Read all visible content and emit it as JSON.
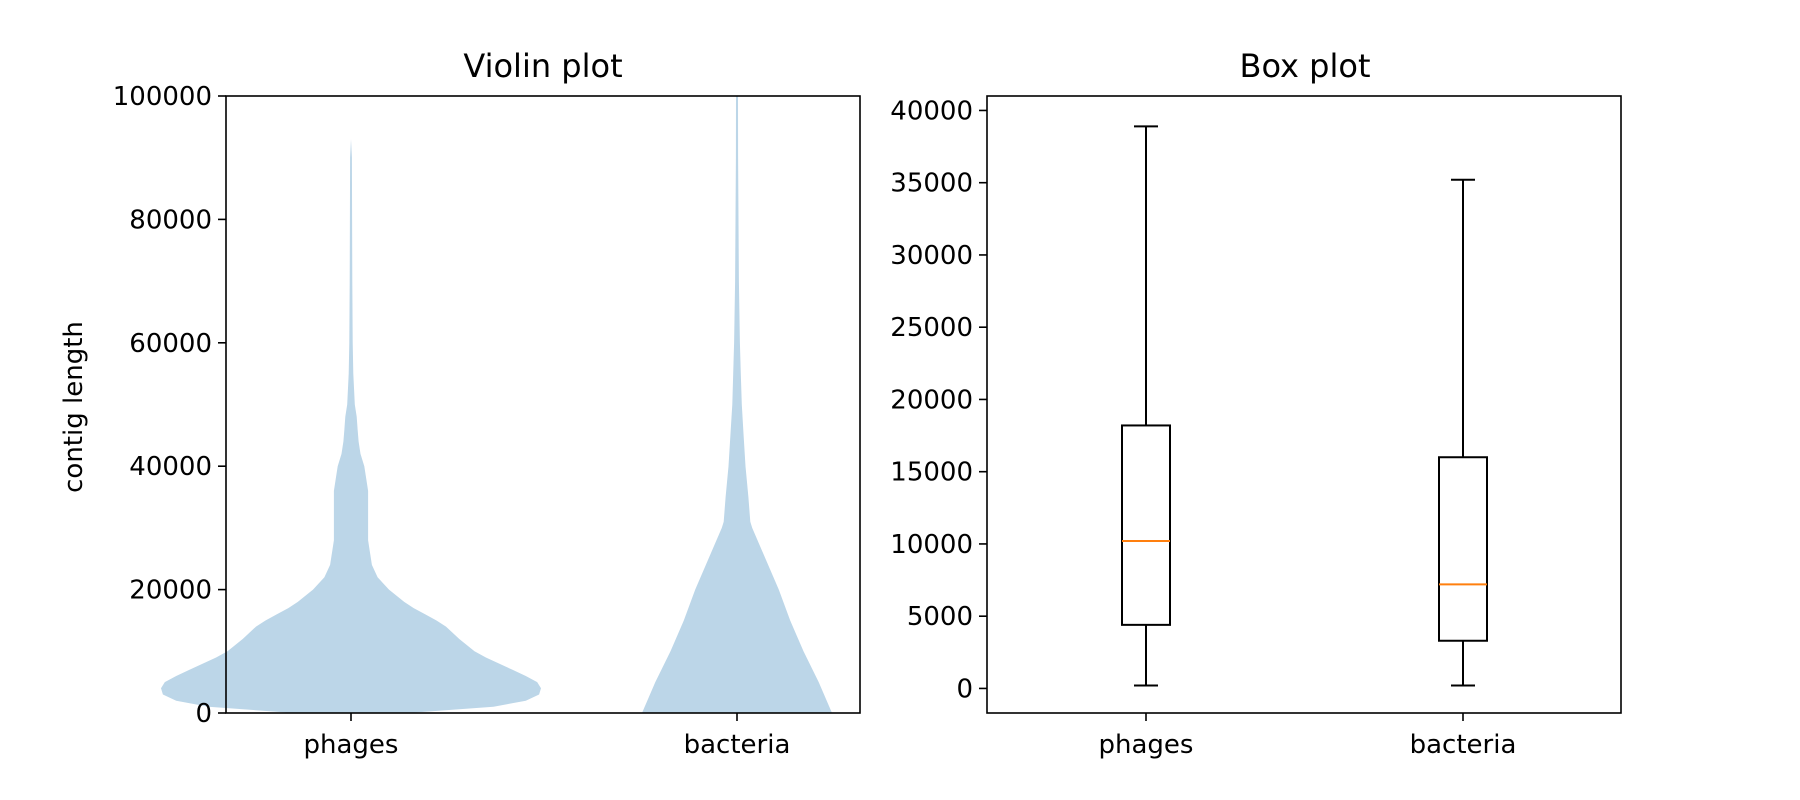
{
  "chart_data": [
    {
      "type": "violin",
      "title": "Violin plot",
      "xlabel": "",
      "ylabel": "contig length",
      "categories": [
        "phages",
        "bacteria"
      ],
      "ylim": [
        0,
        100000
      ],
      "yticks": [
        "0",
        "20000",
        "40000",
        "60000",
        "80000",
        "100000"
      ],
      "color": "#bcd6e8",
      "violins": [
        {
          "name": "phages",
          "profile": [
            [
              0,
              0.3
            ],
            [
              1000,
              0.75
            ],
            [
              2000,
              0.92
            ],
            [
              3000,
              0.99
            ],
            [
              4000,
              1.0
            ],
            [
              5000,
              0.98
            ],
            [
              6000,
              0.92
            ],
            [
              7000,
              0.85
            ],
            [
              8000,
              0.78
            ],
            [
              9000,
              0.71
            ],
            [
              10000,
              0.65
            ],
            [
              12000,
              0.57
            ],
            [
              14000,
              0.5
            ],
            [
              15000,
              0.45
            ],
            [
              16000,
              0.39
            ],
            [
              17000,
              0.33
            ],
            [
              18000,
              0.28
            ],
            [
              20000,
              0.2
            ],
            [
              22000,
              0.14
            ],
            [
              24000,
              0.11
            ],
            [
              26000,
              0.1
            ],
            [
              28000,
              0.09
            ],
            [
              30000,
              0.09
            ],
            [
              32000,
              0.09
            ],
            [
              34000,
              0.09
            ],
            [
              36000,
              0.09
            ],
            [
              38000,
              0.08
            ],
            [
              40000,
              0.07
            ],
            [
              42000,
              0.05
            ],
            [
              44000,
              0.04
            ],
            [
              46000,
              0.035
            ],
            [
              48000,
              0.03
            ],
            [
              50000,
              0.02
            ],
            [
              55000,
              0.012
            ],
            [
              60000,
              0.009
            ],
            [
              70000,
              0.007
            ],
            [
              80000,
              0.006
            ],
            [
              90000,
              0.005
            ],
            [
              93000,
              0.0
            ]
          ]
        },
        {
          "name": "bacteria",
          "profile": [
            [
              0,
              0.5
            ],
            [
              5000,
              0.43
            ],
            [
              10000,
              0.35
            ],
            [
              15000,
              0.28
            ],
            [
              20000,
              0.22
            ],
            [
              25000,
              0.15
            ],
            [
              30000,
              0.08
            ],
            [
              31000,
              0.07
            ],
            [
              35000,
              0.06
            ],
            [
              40000,
              0.045
            ],
            [
              45000,
              0.035
            ],
            [
              50000,
              0.025
            ],
            [
              55000,
              0.02
            ],
            [
              60000,
              0.015
            ],
            [
              70000,
              0.01
            ],
            [
              80000,
              0.008
            ],
            [
              90000,
              0.006
            ],
            [
              100000,
              0.005
            ]
          ]
        }
      ]
    },
    {
      "type": "box",
      "title": "Box plot",
      "xlabel": "",
      "ylabel": "",
      "categories": [
        "phages",
        "bacteria"
      ],
      "ylim": [
        -1700,
        41000
      ],
      "yticks": [
        "0",
        "5000",
        "10000",
        "15000",
        "20000",
        "25000",
        "30000",
        "35000",
        "40000"
      ],
      "median_color": "#ff7f0e",
      "boxes": [
        {
          "name": "phages",
          "whisker_low": 200,
          "q1": 4400,
          "median": 10200,
          "q3": 18200,
          "whisker_high": 38900
        },
        {
          "name": "bacteria",
          "whisker_low": 200,
          "q1": 3300,
          "median": 7200,
          "q3": 16000,
          "whisker_high": 35200
        }
      ]
    }
  ]
}
